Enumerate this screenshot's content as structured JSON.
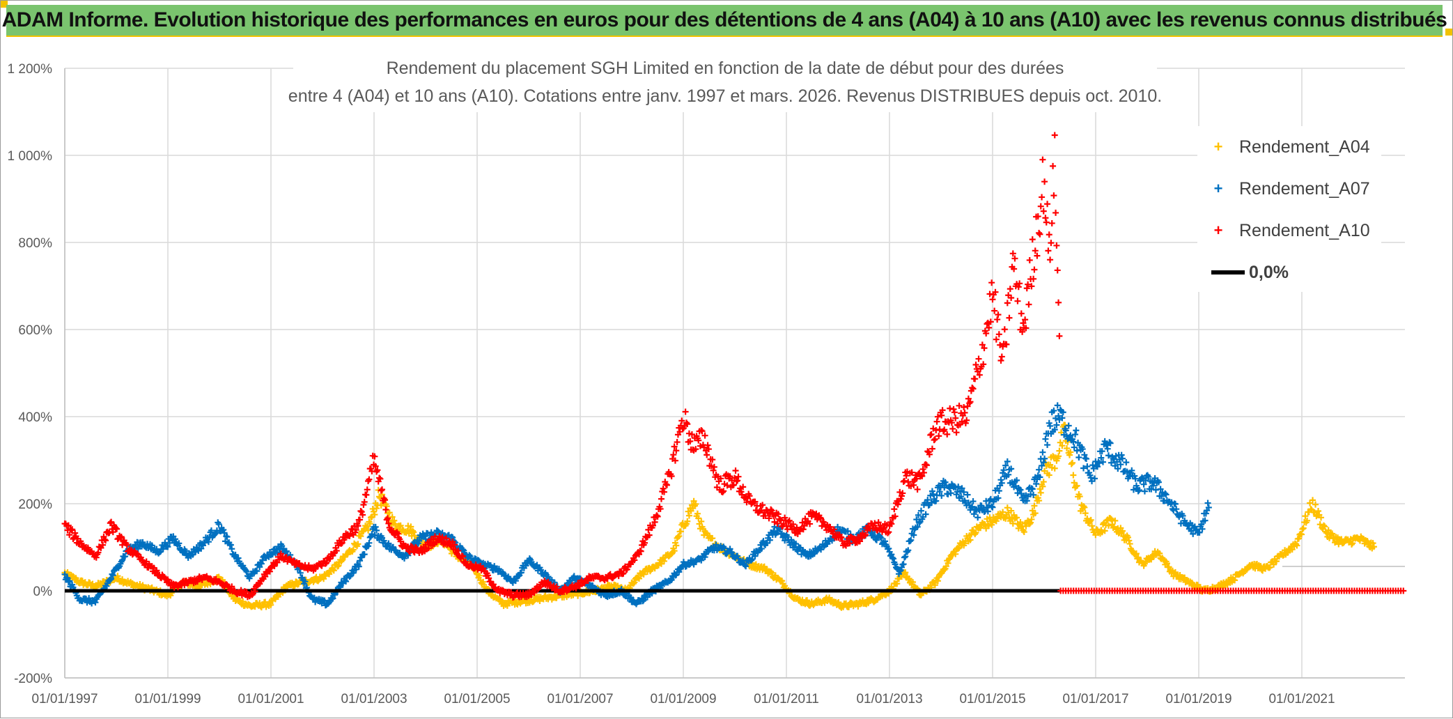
{
  "banner": {
    "title": "ADAM Informe. Evolution historique des performances en euros pour des détentions de 4 ans (A04) à 10 ans (A10) avec les revenus connus distribués"
  },
  "colors": {
    "banner_bg": "#7ac46e",
    "accent": "#f2c200",
    "a04": "#ffc000",
    "a07": "#0070c0",
    "a10": "#ff0000",
    "zero": "#000000"
  },
  "chart_data": {
    "type": "scatter",
    "title_line1": "Rendement du placement SGH Limited en fonction de la date de début pour des durées",
    "title_line2": "entre 4 (A04) et 10 ans (A10). Cotations entre janv. 1997 et mars. 2026. Revenus DISTRIBUES depuis oct. 2010.",
    "xlabel": "",
    "ylabel": "",
    "xlim": [
      1997.0,
      2023.0
    ],
    "ylim": [
      -200,
      1200
    ],
    "ytick_values": [
      -200,
      0,
      200,
      400,
      600,
      800,
      1000,
      1200
    ],
    "ytick_labels": [
      "-200%",
      "0%",
      "200%",
      "400%",
      "600%",
      "800%",
      "1 000%",
      "1 200%"
    ],
    "xtick_values": [
      1997,
      1999,
      2001,
      2003,
      2005,
      2007,
      2009,
      2011,
      2013,
      2015,
      2017,
      2019,
      2021
    ],
    "xtick_labels": [
      "01/01/1997",
      "01/01/1999",
      "01/01/2001",
      "01/01/2003",
      "01/01/2005",
      "01/01/2007",
      "01/01/2009",
      "01/01/2011",
      "01/01/2013",
      "01/01/2015",
      "01/01/2017",
      "01/01/2019",
      "01/01/2021"
    ],
    "legend_position": "top-right",
    "series": [
      {
        "name": "Rendement_A04",
        "color_key": "a04",
        "x": [
          1997.0,
          1997.3,
          1997.6,
          1998.0,
          1998.3,
          1998.6,
          1999.0,
          1999.3,
          1999.6,
          2000.0,
          2000.3,
          2000.6,
          2001.0,
          2001.3,
          2001.6,
          2002.0,
          2002.3,
          2002.6,
          2002.9,
          2003.1,
          2003.4,
          2003.7,
          2004.0,
          2004.3,
          2004.6,
          2004.9,
          2005.2,
          2005.5,
          2005.8,
          2006.1,
          2006.4,
          2006.7,
          2007.0,
          2007.3,
          2007.6,
          2007.9,
          2008.2,
          2008.5,
          2008.8,
          2009.0,
          2009.2,
          2009.4,
          2009.7,
          2010.0,
          2010.3,
          2010.6,
          2010.9,
          2011.2,
          2011.5,
          2011.8,
          2012.1,
          2012.4,
          2012.7,
          2013.0,
          2013.3,
          2013.6,
          2013.9,
          2014.2,
          2014.5,
          2014.8,
          2015.0,
          2015.3,
          2015.6,
          2015.8,
          2016.0,
          2016.2,
          2016.4,
          2016.7,
          2017.0,
          2017.3,
          2017.6,
          2017.9,
          2018.2,
          2018.5,
          2018.8,
          2019.1,
          2019.4,
          2019.7,
          2020.0,
          2020.3,
          2020.6,
          2020.9,
          2021.2,
          2021.5,
          2021.8,
          2022.1,
          2022.4
        ],
        "y": [
          40,
          20,
          10,
          30,
          15,
          5,
          -10,
          20,
          10,
          30,
          -20,
          -35,
          -30,
          10,
          20,
          30,
          60,
          100,
          150,
          220,
          150,
          140,
          100,
          120,
          80,
          60,
          0,
          -30,
          -25,
          -20,
          -15,
          -10,
          -5,
          0,
          10,
          0,
          40,
          60,
          90,
          150,
          200,
          130,
          100,
          80,
          60,
          50,
          20,
          -20,
          -30,
          -20,
          -35,
          -30,
          -20,
          0,
          40,
          -10,
          20,
          80,
          120,
          150,
          160,
          180,
          140,
          180,
          270,
          300,
          360,
          200,
          130,
          160,
          120,
          60,
          90,
          40,
          20,
          0,
          10,
          30,
          60,
          50,
          80,
          110,
          200,
          130,
          110,
          120,
          100
        ]
      },
      {
        "name": "Rendement_A07",
        "color_key": "a07",
        "x": [
          1997.0,
          1997.3,
          1997.6,
          1997.9,
          1998.2,
          1998.5,
          1998.8,
          1999.1,
          1999.4,
          1999.7,
          2000.0,
          2000.3,
          2000.6,
          2000.9,
          2001.2,
          2001.5,
          2001.8,
          2002.1,
          2002.4,
          2002.7,
          2003.0,
          2003.3,
          2003.6,
          2003.9,
          2004.2,
          2004.5,
          2004.8,
          2005.1,
          2005.4,
          2005.7,
          2006.0,
          2006.3,
          2006.6,
          2006.9,
          2007.2,
          2007.5,
          2007.8,
          2008.1,
          2008.4,
          2008.7,
          2009.0,
          2009.3,
          2009.6,
          2009.9,
          2010.2,
          2010.5,
          2010.8,
          2011.1,
          2011.4,
          2011.7,
          2012.0,
          2012.3,
          2012.6,
          2012.9,
          2013.2,
          2013.5,
          2013.8,
          2014.1,
          2014.4,
          2014.7,
          2015.0,
          2015.3,
          2015.6,
          2015.9,
          2016.1,
          2016.3,
          2016.6,
          2016.9,
          2017.2,
          2017.5,
          2017.8,
          2018.1,
          2018.4,
          2018.7,
          2019.0,
          2019.2
        ],
        "y": [
          35,
          -20,
          -25,
          30,
          90,
          110,
          90,
          120,
          80,
          110,
          150,
          80,
          30,
          80,
          100,
          60,
          -20,
          -30,
          20,
          60,
          140,
          100,
          80,
          120,
          130,
          120,
          80,
          60,
          50,
          20,
          70,
          40,
          0,
          30,
          10,
          -10,
          0,
          -30,
          0,
          20,
          60,
          70,
          100,
          90,
          60,
          100,
          140,
          110,
          80,
          100,
          140,
          120,
          140,
          110,
          40,
          150,
          210,
          240,
          220,
          180,
          200,
          280,
          200,
          260,
          380,
          400,
          350,
          260,
          330,
          290,
          240,
          250,
          210,
          160,
          130,
          200
        ]
      },
      {
        "name": "Rendement_A10",
        "color_key": "a10",
        "x": [
          1997.0,
          1997.3,
          1997.6,
          1997.9,
          1998.2,
          1998.5,
          1998.8,
          1999.1,
          1999.4,
          1999.7,
          2000.0,
          2000.3,
          2000.6,
          2000.9,
          2001.2,
          2001.5,
          2001.8,
          2002.1,
          2002.4,
          2002.7,
          2003.0,
          2003.3,
          2003.6,
          2003.9,
          2004.2,
          2004.5,
          2004.8,
          2005.1,
          2005.4,
          2005.7,
          2006.0,
          2006.3,
          2006.6,
          2006.9,
          2007.2,
          2007.5,
          2007.8,
          2008.1,
          2008.4,
          2008.7,
          2009.0,
          2009.2,
          2009.4,
          2009.7,
          2010.0,
          2010.3,
          2010.6,
          2010.9,
          2011.2,
          2011.5,
          2011.8,
          2012.1,
          2012.4,
          2012.7,
          2013.0,
          2013.3,
          2013.6,
          2013.9,
          2014.2,
          2014.5,
          2014.8,
          2015.0,
          2015.2,
          2015.4,
          2015.6,
          2015.8,
          2016.0,
          2016.1,
          2016.2,
          2016.3
        ],
        "y": [
          150,
          110,
          80,
          150,
          100,
          70,
          40,
          10,
          20,
          30,
          20,
          0,
          -10,
          40,
          80,
          60,
          50,
          70,
          120,
          150,
          300,
          150,
          100,
          90,
          120,
          110,
          60,
          50,
          0,
          -10,
          -10,
          20,
          0,
          10,
          30,
          30,
          40,
          80,
          150,
          250,
          400,
          330,
          350,
          240,
          260,
          200,
          180,
          160,
          140,
          170,
          150,
          110,
          120,
          150,
          140,
          260,
          250,
          380,
          390,
          400,
          550,
          680,
          520,
          750,
          600,
          780,
          950,
          760,
          1000,
          550
        ]
      },
      {
        "name": "0,0%",
        "color_key": "zero",
        "x": [
          1997.0,
          2023.0
        ],
        "y": [
          0,
          0
        ]
      }
    ]
  },
  "legend": {
    "items": [
      {
        "marker": "+",
        "label": "Rendement_A04"
      },
      {
        "marker": "+",
        "label": "Rendement_A07"
      },
      {
        "marker": "+",
        "label": "Rendement_A10"
      }
    ],
    "zero_label": "0,0%"
  }
}
